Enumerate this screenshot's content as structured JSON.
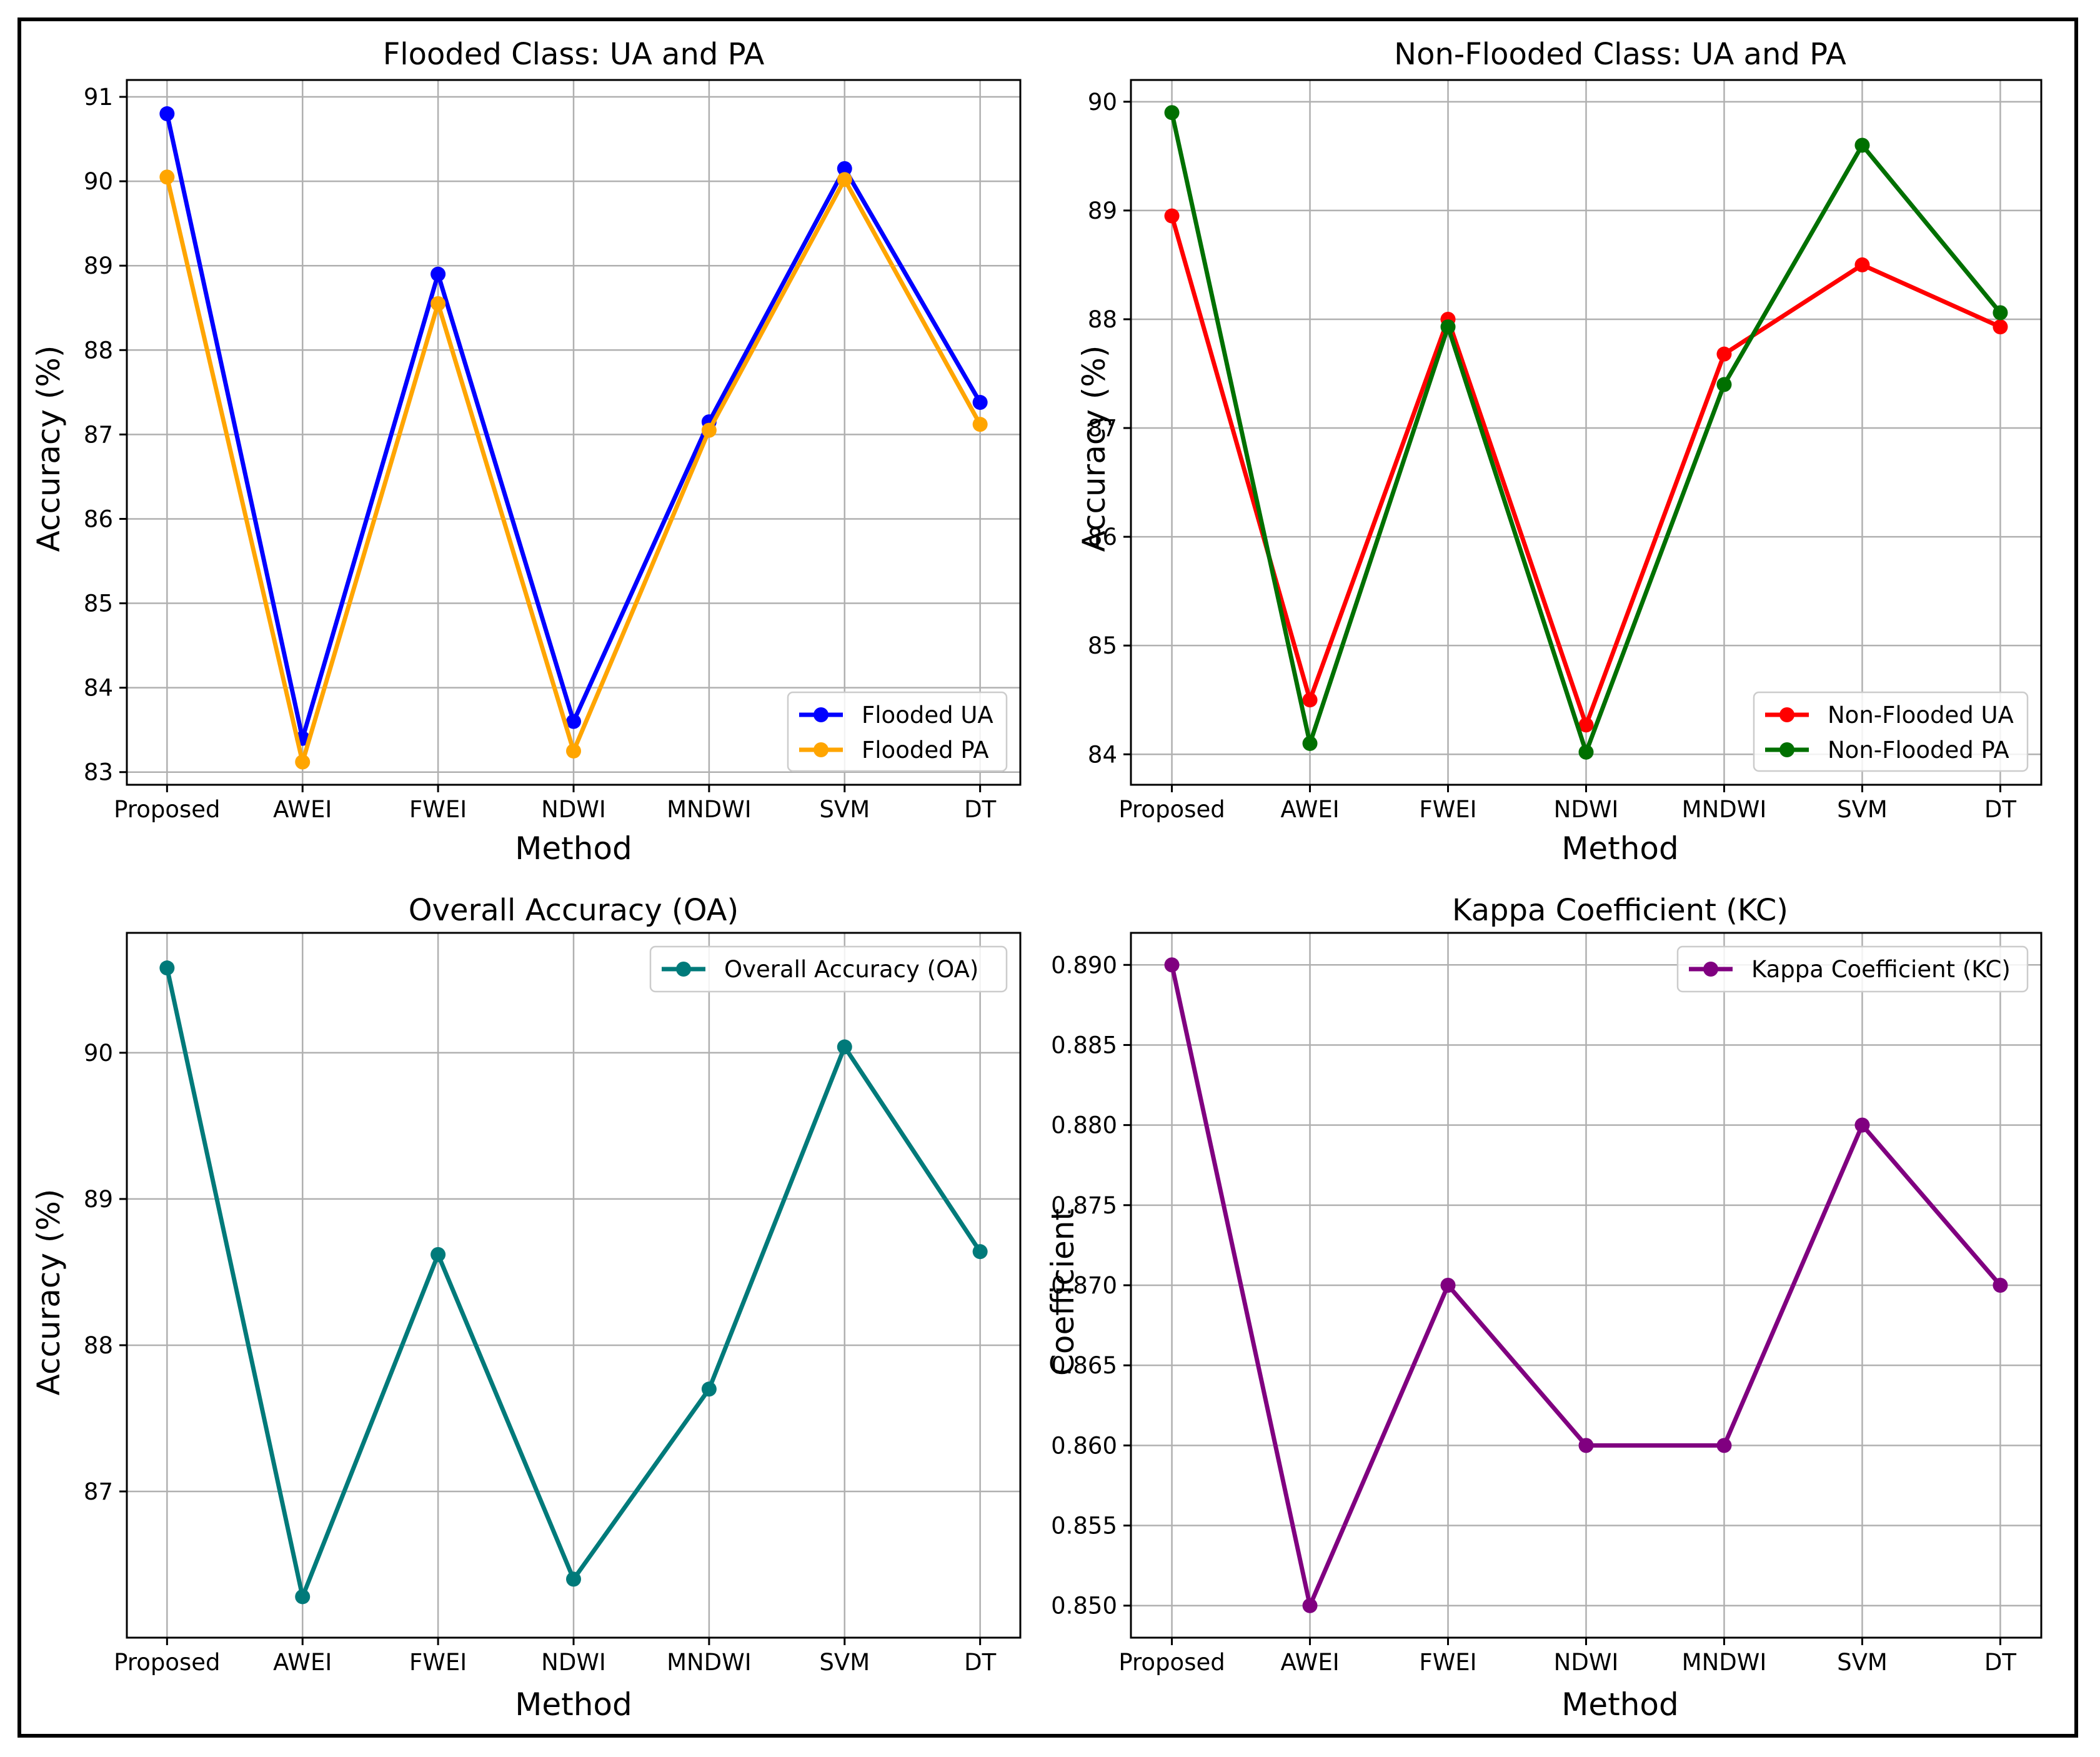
{
  "chart_data": [
    {
      "type": "line",
      "title": "Flooded Class: UA and PA",
      "xlabel": "Method",
      "ylabel": "Accuracy (%)",
      "categories": [
        "Proposed",
        "AWEI",
        "FWEI",
        "NDWI",
        "MNDWI",
        "SVM",
        "DT"
      ],
      "ylim": [
        82.85,
        91.2
      ],
      "yticks": [
        83,
        84,
        85,
        86,
        87,
        88,
        89,
        90,
        91
      ],
      "ytick_labels": [
        "83",
        "84",
        "85",
        "86",
        "87",
        "88",
        "89",
        "90",
        "91"
      ],
      "grid": true,
      "legend_position": "lower-right",
      "series": [
        {
          "name": "Flooded UA",
          "color": "#0000ff",
          "values": [
            90.8,
            83.4,
            88.9,
            83.6,
            87.15,
            90.15,
            87.38
          ]
        },
        {
          "name": "Flooded PA",
          "color": "#ffa500",
          "values": [
            90.05,
            83.12,
            88.55,
            83.25,
            87.05,
            90.02,
            87.12
          ]
        }
      ]
    },
    {
      "type": "line",
      "title": "Non-Flooded Class: UA and PA",
      "xlabel": "Method",
      "ylabel": "Accuracy (%)",
      "categories": [
        "Proposed",
        "AWEI",
        "FWEI",
        "NDWI",
        "MNDWI",
        "SVM",
        "DT"
      ],
      "ylim": [
        83.72,
        90.2
      ],
      "yticks": [
        84,
        85,
        86,
        87,
        88,
        89,
        90
      ],
      "ytick_labels": [
        "84",
        "85",
        "86",
        "87",
        "88",
        "89",
        "90"
      ],
      "grid": true,
      "legend_position": "lower-right",
      "series": [
        {
          "name": "Non-Flooded UA",
          "color": "#ff0000",
          "values": [
            88.95,
            84.5,
            88.0,
            84.27,
            87.68,
            88.5,
            87.93
          ]
        },
        {
          "name": "Non-Flooded PA",
          "color": "#007000",
          "values": [
            89.9,
            84.1,
            87.93,
            84.02,
            87.4,
            89.6,
            88.06
          ]
        }
      ]
    },
    {
      "type": "line",
      "title": "Overall Accuracy (OA)",
      "xlabel": "Method",
      "ylabel": "Accuracy (%)",
      "categories": [
        "Proposed",
        "AWEI",
        "FWEI",
        "NDWI",
        "MNDWI",
        "SVM",
        "DT"
      ],
      "ylim": [
        86.0,
        90.82
      ],
      "yticks": [
        87,
        88,
        89,
        90
      ],
      "ytick_labels": [
        "87",
        "88",
        "89",
        "90"
      ],
      "grid": true,
      "legend_position": "top-right",
      "series": [
        {
          "name": "Overall Accuracy (OA)",
          "color": "#007a7a",
          "values": [
            90.58,
            86.28,
            88.62,
            86.4,
            87.7,
            90.04,
            88.64
          ]
        }
      ]
    },
    {
      "type": "line",
      "title": "Kappa Coefficient (KC)",
      "xlabel": "Method",
      "ylabel": "Coefficient",
      "categories": [
        "Proposed",
        "AWEI",
        "FWEI",
        "NDWI",
        "MNDWI",
        "SVM",
        "DT"
      ],
      "ylim": [
        0.848,
        0.892
      ],
      "yticks": [
        0.85,
        0.855,
        0.86,
        0.865,
        0.87,
        0.875,
        0.88,
        0.885,
        0.89
      ],
      "ytick_labels": [
        "0.850",
        "0.855",
        "0.860",
        "0.865",
        "0.870",
        "0.875",
        "0.880",
        "0.885",
        "0.890"
      ],
      "grid": true,
      "legend_position": "top-right",
      "series": [
        {
          "name": "Kappa Coefficient (KC)",
          "color": "#800080",
          "values": [
            0.89,
            0.85,
            0.87,
            0.86,
            0.86,
            0.88,
            0.87
          ]
        }
      ]
    }
  ]
}
